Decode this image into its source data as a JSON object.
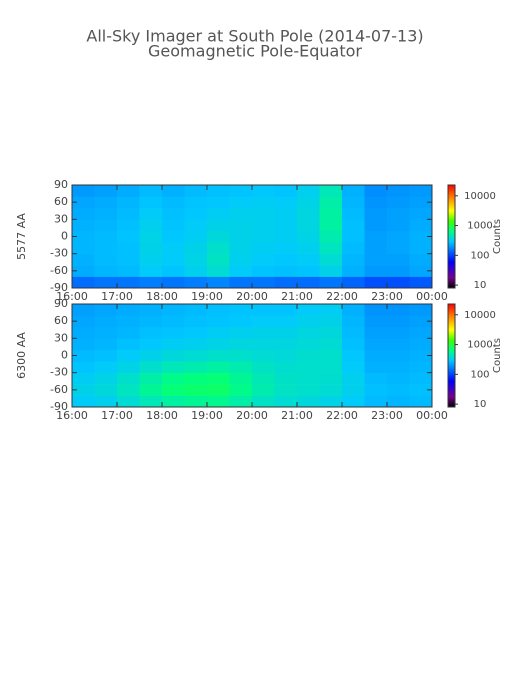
{
  "chart_data": [
    {
      "type": "heatmap",
      "title": "All-Sky Imager at South Pole (2014-07-13)",
      "subtitle": "Geomagnetic Pole-Equator",
      "ylabel": "5577 AA",
      "colormap": "rainbow",
      "x": [
        16.25,
        16.75,
        17.25,
        17.75,
        18.25,
        18.75,
        19.25,
        19.75,
        20.25,
        20.75,
        21.25,
        21.75,
        22.25,
        22.75,
        23.25,
        23.75
      ],
      "y": [
        -80,
        -60,
        -40,
        -20,
        0,
        20,
        40,
        60,
        80
      ],
      "xlim": [
        16,
        24
      ],
      "ylim": [
        -90,
        90
      ],
      "xticks": [
        {
          "value": 16,
          "label": "16:00"
        },
        {
          "value": 17,
          "label": "17:00"
        },
        {
          "value": 18,
          "label": "18:00"
        },
        {
          "value": 19,
          "label": "19:00"
        },
        {
          "value": 20,
          "label": "20:00"
        },
        {
          "value": 21,
          "label": "21:00"
        },
        {
          "value": 22,
          "label": "22:00"
        },
        {
          "value": 23,
          "label": "23:00"
        },
        {
          "value": 24,
          "label": "00:00"
        }
      ],
      "yticks": [
        -90,
        -60,
        -30,
        0,
        30,
        60,
        90
      ],
      "colorbar": {
        "label": "Counts",
        "lim": [
          8,
          23000
        ],
        "ticks": [
          10,
          100,
          1000,
          10000
        ],
        "log": true
      },
      "values": [
        [
          140,
          150,
          150,
          160,
          150,
          160,
          170,
          150,
          150,
          140,
          140,
          150,
          130,
          110,
          110,
          120
        ],
        [
          230,
          250,
          260,
          300,
          280,
          320,
          380,
          300,
          280,
          270,
          280,
          330,
          240,
          200,
          200,
          220
        ],
        [
          240,
          260,
          270,
          320,
          300,
          340,
          420,
          320,
          300,
          290,
          300,
          380,
          250,
          210,
          210,
          230
        ],
        [
          250,
          260,
          270,
          330,
          300,
          330,
          400,
          330,
          310,
          300,
          320,
          430,
          260,
          210,
          220,
          240
        ],
        [
          250,
          260,
          280,
          340,
          290,
          310,
          360,
          330,
          320,
          310,
          340,
          480,
          270,
          210,
          220,
          240
        ],
        [
          240,
          250,
          270,
          320,
          280,
          300,
          330,
          330,
          320,
          310,
          350,
          520,
          270,
          200,
          210,
          230
        ],
        [
          230,
          240,
          260,
          300,
          270,
          290,
          310,
          320,
          320,
          310,
          350,
          520,
          260,
          200,
          210,
          220
        ],
        [
          220,
          230,
          250,
          280,
          260,
          280,
          290,
          300,
          310,
          300,
          340,
          500,
          250,
          190,
          200,
          210
        ],
        [
          200,
          210,
          230,
          260,
          240,
          260,
          270,
          280,
          290,
          280,
          320,
          450,
          240,
          180,
          190,
          200
        ]
      ]
    },
    {
      "type": "heatmap",
      "ylabel": "6300 AA",
      "colormap": "rainbow",
      "x": [
        16.25,
        16.75,
        17.25,
        17.75,
        18.25,
        18.75,
        19.25,
        19.75,
        20.25,
        20.75,
        21.25,
        21.75,
        22.25,
        22.75,
        23.25,
        23.75
      ],
      "y": [
        -80,
        -60,
        -40,
        -20,
        0,
        20,
        40,
        60,
        80
      ],
      "xlim": [
        16,
        24
      ],
      "ylim": [
        -90,
        90
      ],
      "xticks": [
        {
          "value": 16,
          "label": "16:00"
        },
        {
          "value": 17,
          "label": "17:00"
        },
        {
          "value": 18,
          "label": "18:00"
        },
        {
          "value": 19,
          "label": "19:00"
        },
        {
          "value": 20,
          "label": "20:00"
        },
        {
          "value": 21,
          "label": "21:00"
        },
        {
          "value": 22,
          "label": "22:00"
        },
        {
          "value": 23,
          "label": "23:00"
        },
        {
          "value": 24,
          "label": "00:00"
        }
      ],
      "yticks": [
        -90,
        -60,
        -30,
        0,
        30,
        60,
        90
      ],
      "colorbar": {
        "label": "Counts",
        "lim": [
          8,
          23000
        ],
        "ticks": [
          10,
          100,
          1000,
          10000
        ],
        "log": true
      },
      "values": [
        [
          300,
          320,
          380,
          450,
          520,
          560,
          580,
          500,
          420,
          380,
          360,
          340,
          300,
          260,
          250,
          260
        ],
        [
          330,
          360,
          430,
          560,
          680,
          720,
          740,
          600,
          480,
          420,
          400,
          380,
          320,
          270,
          260,
          270
        ],
        [
          310,
          340,
          400,
          500,
          600,
          650,
          680,
          560,
          460,
          410,
          400,
          390,
          320,
          260,
          250,
          260
        ],
        [
          280,
          300,
          340,
          400,
          450,
          480,
          520,
          480,
          420,
          390,
          400,
          400,
          300,
          240,
          240,
          250
        ],
        [
          260,
          270,
          300,
          330,
          360,
          380,
          400,
          400,
          380,
          370,
          390,
          400,
          290,
          230,
          230,
          240
        ],
        [
          240,
          250,
          270,
          290,
          310,
          320,
          340,
          350,
          350,
          350,
          370,
          380,
          270,
          220,
          220,
          230
        ],
        [
          230,
          240,
          250,
          270,
          280,
          290,
          310,
          320,
          330,
          330,
          350,
          360,
          260,
          210,
          210,
          220
        ],
        [
          220,
          230,
          240,
          250,
          260,
          270,
          280,
          290,
          300,
          300,
          320,
          330,
          250,
          200,
          200,
          210
        ],
        [
          210,
          220,
          230,
          240,
          250,
          260,
          270,
          280,
          280,
          280,
          300,
          310,
          240,
          190,
          190,
          200
        ]
      ]
    }
  ]
}
